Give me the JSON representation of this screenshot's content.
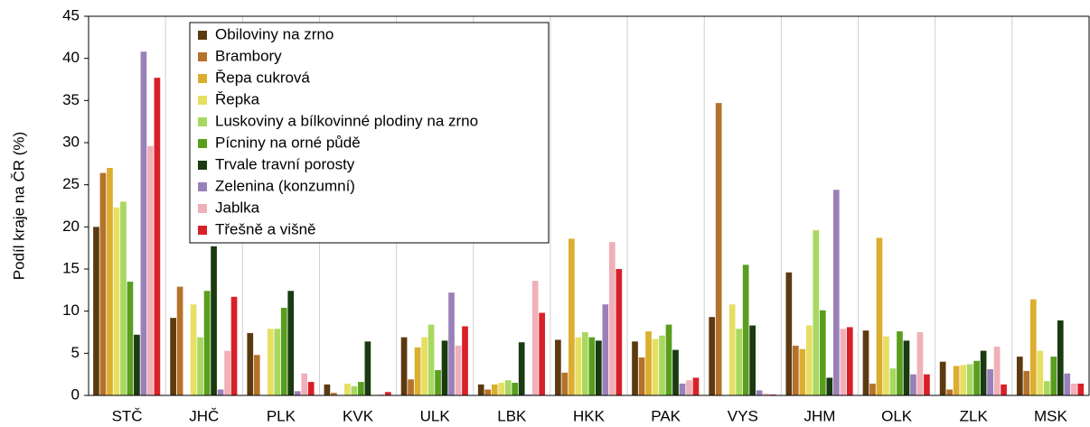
{
  "chart_data": {
    "type": "bar",
    "ylabel": "Podíl kraje na ČR (%)",
    "categories": [
      "STČ",
      "JHČ",
      "PLK",
      "KVK",
      "ULK",
      "LBK",
      "HKK",
      "PAK",
      "VYS",
      "JHM",
      "OLK",
      "ZLK",
      "MSK"
    ],
    "series": [
      {
        "name": "Obiloviny na zrno",
        "color": "#5c3a10",
        "values": [
          20,
          9.2,
          7.4,
          1.3,
          6.9,
          1.3,
          6.6,
          6.4,
          9.3,
          14.6,
          7.7,
          4.0,
          4.6
        ]
      },
      {
        "name": "Brambory",
        "color": "#b5722a",
        "values": [
          26.4,
          12.9,
          4.8,
          0.3,
          1.9,
          0.7,
          2.7,
          4.5,
          34.7,
          5.9,
          1.4,
          0.7,
          2.9
        ]
      },
      {
        "name": "Řepa cukrová",
        "color": "#dcae30",
        "values": [
          27,
          0,
          0,
          0,
          5.7,
          1.3,
          18.6,
          7.6,
          0,
          5.5,
          18.7,
          3.5,
          11.4
        ]
      },
      {
        "name": "Řepka",
        "color": "#e6df62",
        "values": [
          22.3,
          10.8,
          7.9,
          1.4,
          6.9,
          1.5,
          6.9,
          6.7,
          10.8,
          8.3,
          7.0,
          3.6,
          5.3
        ]
      },
      {
        "name": "Luskoviny a bílkovinné plodiny na zrno",
        "color": "#a8d860",
        "values": [
          23,
          6.9,
          7.9,
          1.1,
          8.4,
          1.8,
          7.5,
          7.1,
          7.9,
          19.6,
          3.2,
          3.7,
          1.7
        ]
      },
      {
        "name": "Pícniny na orné půdě",
        "color": "#5a9e1e",
        "values": [
          13.5,
          12.4,
          10.4,
          1.6,
          3.0,
          1.5,
          6.9,
          8.4,
          15.5,
          10.1,
          7.6,
          4.1,
          4.6
        ]
      },
      {
        "name": "Trvale travní porosty",
        "color": "#1a3a10",
        "values": [
          7.2,
          17.7,
          12.4,
          6.4,
          6.5,
          6.3,
          6.5,
          5.4,
          8.3,
          2.1,
          6.5,
          5.3,
          8.9
        ]
      },
      {
        "name": "Zelenina (konzumní)",
        "color": "#9a80b8",
        "values": [
          40.8,
          0.7,
          0.5,
          0,
          12.2,
          0.1,
          10.8,
          1.4,
          0.6,
          24.4,
          2.5,
          3.1,
          2.6
        ]
      },
      {
        "name": "Jablka",
        "color": "#f0b0b8",
        "values": [
          29.6,
          5.3,
          2.6,
          0.1,
          5.9,
          13.6,
          18.2,
          1.8,
          0.2,
          7.9,
          7.5,
          5.8,
          1.4
        ]
      },
      {
        "name": "Třešně a višně",
        "color": "#d82028",
        "values": [
          37.7,
          11.7,
          1.6,
          0.4,
          8.2,
          9.8,
          15.0,
          2.1,
          0.1,
          8.1,
          2.5,
          1.3,
          1.4
        ]
      }
    ],
    "ylim": [
      0,
      45
    ],
    "yticks": [
      0,
      5,
      10,
      15,
      20,
      25,
      30,
      35,
      40,
      45
    ],
    "grid": true,
    "legend": "upper left"
  }
}
